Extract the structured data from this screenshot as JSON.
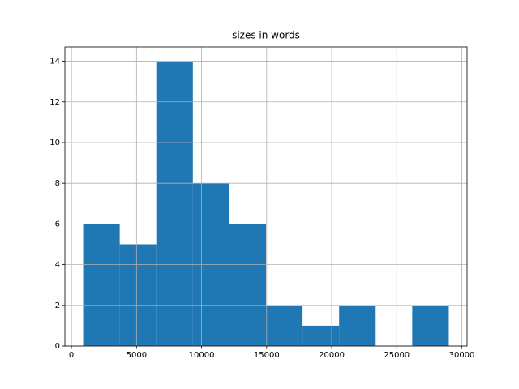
{
  "chart_data": {
    "type": "histogram",
    "title": "sizes in words",
    "bins": [
      900,
      3710,
      6520,
      9330,
      12140,
      14950,
      17760,
      20570,
      23380,
      26190,
      29000
    ],
    "counts": [
      6,
      5,
      14,
      8,
      6,
      2,
      1,
      2,
      0,
      2
    ],
    "color": "#1f77b4",
    "xlim": [
      -505,
      30405
    ],
    "xticks": [
      0,
      5000,
      10000,
      15000,
      20000,
      25000,
      30000
    ],
    "ylim": [
      0,
      14.7
    ],
    "yticks": [
      0,
      2,
      4,
      6,
      8,
      10,
      12,
      14
    ],
    "grid": true
  }
}
